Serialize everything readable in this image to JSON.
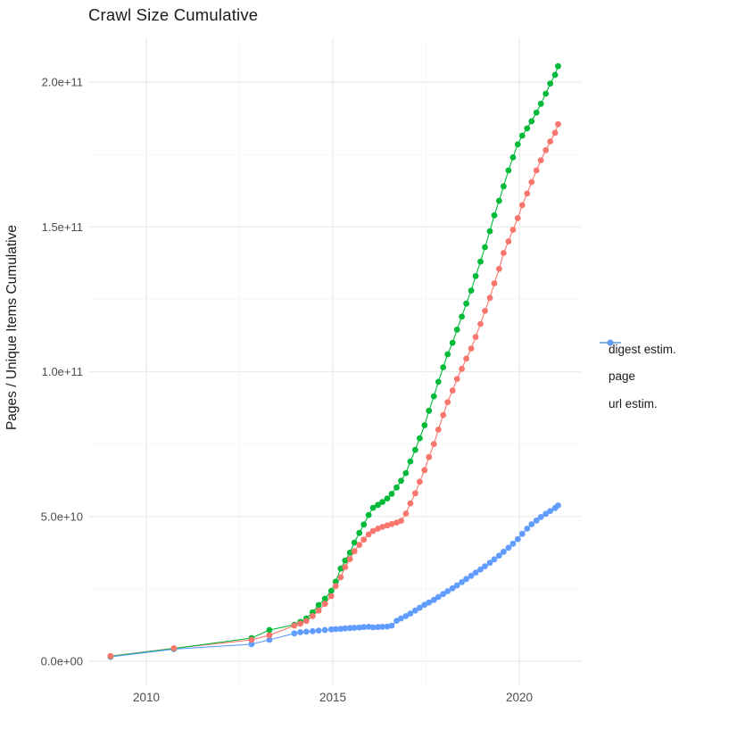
{
  "chart_data": {
    "type": "scatter",
    "title": "Crawl Size Cumulative",
    "xlabel": "",
    "ylabel": "Pages / Unique Items Cumulative",
    "legend_position": "right",
    "grid": "major and minor, light gray on white",
    "value_unit": "billions (1e9) of pages / unique items",
    "xlim": [
      2008.47,
      2021.65
    ],
    "ylim": [
      -8300000000,
      215000000000
    ],
    "x_ticks": {
      "values": [
        2010,
        2015,
        2020
      ],
      "labels": [
        "2010",
        "2015",
        "2020"
      ]
    },
    "x_minor_ticks": [
      2012.5,
      2017.5
    ],
    "y_ticks": {
      "values_e9": [
        0,
        50,
        100,
        150,
        200
      ],
      "labels": [
        "0.0e+00",
        "5.0e+10",
        "1.0e+11",
        "1.5e+11",
        "2.0e+11"
      ]
    },
    "y_minor_ticks_e9": [
      25,
      75,
      125,
      175
    ],
    "colors": {
      "digest": "#F8766D",
      "page": "#00BA38",
      "url": "#619CFF",
      "grid_major": "#EBEBEB",
      "grid_minor": "#F5F5F5",
      "axis_text": "#4D4D4D",
      "title_text": "#1A1A1A"
    },
    "series": [
      {
        "name": "digest estim.",
        "color": "#F8766D",
        "points_year_e9": [
          [
            2009.04,
            1.8
          ],
          [
            2010.74,
            4.5
          ],
          [
            2012.82,
            7.4
          ],
          [
            2013.3,
            9.0
          ],
          [
            2013.97,
            12.3
          ],
          [
            2014.13,
            13.0
          ],
          [
            2014.29,
            13.9
          ],
          [
            2014.46,
            15.6
          ],
          [
            2014.62,
            17.5
          ],
          [
            2014.79,
            19.8
          ],
          [
            2014.96,
            22.5
          ],
          [
            2015.08,
            26.0
          ],
          [
            2015.21,
            29.0
          ],
          [
            2015.33,
            32.5
          ],
          [
            2015.46,
            35.3
          ],
          [
            2015.58,
            38.0
          ],
          [
            2015.71,
            40.2
          ],
          [
            2015.83,
            42.0
          ],
          [
            2015.96,
            43.8
          ],
          [
            2016.08,
            45.0
          ],
          [
            2016.21,
            45.8
          ],
          [
            2016.33,
            46.4
          ],
          [
            2016.46,
            46.9
          ],
          [
            2016.58,
            47.4
          ],
          [
            2016.71,
            47.9
          ],
          [
            2016.83,
            48.5
          ],
          [
            2016.96,
            51.0
          ],
          [
            2017.08,
            54.5
          ],
          [
            2017.21,
            58.0
          ],
          [
            2017.33,
            62.0
          ],
          [
            2017.46,
            66.0
          ],
          [
            2017.58,
            70.5
          ],
          [
            2017.71,
            75.0
          ],
          [
            2017.83,
            80.0
          ],
          [
            2017.96,
            85.0
          ],
          [
            2018.08,
            89.5
          ],
          [
            2018.21,
            93.5
          ],
          [
            2018.33,
            97.5
          ],
          [
            2018.46,
            101.0
          ],
          [
            2018.58,
            104.5
          ],
          [
            2018.71,
            108.0
          ],
          [
            2018.83,
            112.0
          ],
          [
            2018.96,
            116.5
          ],
          [
            2019.08,
            121.0
          ],
          [
            2019.21,
            125.5
          ],
          [
            2019.33,
            130.5
          ],
          [
            2019.46,
            135.5
          ],
          [
            2019.58,
            141.0
          ],
          [
            2019.71,
            145.0
          ],
          [
            2019.83,
            149.0
          ],
          [
            2019.96,
            153.0
          ],
          [
            2020.08,
            157.5
          ],
          [
            2020.21,
            161.5
          ],
          [
            2020.33,
            165.5
          ],
          [
            2020.46,
            169.5
          ],
          [
            2020.58,
            173.0
          ],
          [
            2020.71,
            176.5
          ],
          [
            2020.83,
            179.5
          ],
          [
            2020.96,
            182.5
          ],
          [
            2021.04,
            185.5
          ]
        ]
      },
      {
        "name": "page",
        "color": "#00BA38",
        "points_year_e9": [
          [
            2009.04,
            1.7
          ],
          [
            2010.74,
            4.4
          ],
          [
            2012.82,
            8.0
          ],
          [
            2013.3,
            10.8
          ],
          [
            2013.97,
            12.6
          ],
          [
            2014.13,
            13.6
          ],
          [
            2014.29,
            14.8
          ],
          [
            2014.46,
            16.9
          ],
          [
            2014.62,
            19.4
          ],
          [
            2014.79,
            21.6
          ],
          [
            2014.96,
            24.3
          ],
          [
            2015.08,
            27.5
          ],
          [
            2015.21,
            32.0
          ],
          [
            2015.33,
            34.8
          ],
          [
            2015.46,
            37.5
          ],
          [
            2015.58,
            41.0
          ],
          [
            2015.71,
            44.3
          ],
          [
            2015.83,
            47.2
          ],
          [
            2015.96,
            50.5
          ],
          [
            2016.08,
            53.0
          ],
          [
            2016.21,
            54.0
          ],
          [
            2016.33,
            55.0
          ],
          [
            2016.46,
            56.2
          ],
          [
            2016.58,
            57.8
          ],
          [
            2016.71,
            60.0
          ],
          [
            2016.83,
            62.3
          ],
          [
            2016.96,
            65.0
          ],
          [
            2017.08,
            69.0
          ],
          [
            2017.21,
            73.0
          ],
          [
            2017.33,
            77.0
          ],
          [
            2017.46,
            81.5
          ],
          [
            2017.58,
            86.5
          ],
          [
            2017.71,
            91.5
          ],
          [
            2017.83,
            96.5
          ],
          [
            2017.96,
            101.5
          ],
          [
            2018.08,
            106.0
          ],
          [
            2018.21,
            110.0
          ],
          [
            2018.33,
            114.5
          ],
          [
            2018.46,
            119.0
          ],
          [
            2018.58,
            123.5
          ],
          [
            2018.71,
            128.0
          ],
          [
            2018.83,
            133.0
          ],
          [
            2018.96,
            138.0
          ],
          [
            2019.08,
            143.0
          ],
          [
            2019.21,
            148.5
          ],
          [
            2019.33,
            154.0
          ],
          [
            2019.46,
            159.0
          ],
          [
            2019.58,
            164.0
          ],
          [
            2019.71,
            169.5
          ],
          [
            2019.83,
            174.0
          ],
          [
            2019.96,
            178.5
          ],
          [
            2020.08,
            181.5
          ],
          [
            2020.21,
            184.0
          ],
          [
            2020.33,
            186.5
          ],
          [
            2020.46,
            189.5
          ],
          [
            2020.58,
            192.5
          ],
          [
            2020.71,
            196.0
          ],
          [
            2020.83,
            199.5
          ],
          [
            2020.96,
            202.5
          ],
          [
            2021.04,
            205.5
          ]
        ]
      },
      {
        "name": "url estim.",
        "color": "#619CFF",
        "points_year_e9": [
          [
            2009.04,
            1.5
          ],
          [
            2010.74,
            4.2
          ],
          [
            2012.82,
            5.9
          ],
          [
            2013.3,
            7.4
          ],
          [
            2013.97,
            9.6
          ],
          [
            2014.13,
            10.0
          ],
          [
            2014.29,
            10.2
          ],
          [
            2014.46,
            10.4
          ],
          [
            2014.62,
            10.6
          ],
          [
            2014.79,
            10.8
          ],
          [
            2014.96,
            11.0
          ],
          [
            2015.08,
            11.1
          ],
          [
            2015.21,
            11.2
          ],
          [
            2015.33,
            11.35
          ],
          [
            2015.46,
            11.45
          ],
          [
            2015.58,
            11.55
          ],
          [
            2015.71,
            11.65
          ],
          [
            2015.83,
            11.8
          ],
          [
            2015.96,
            11.9
          ],
          [
            2016.08,
            11.7
          ],
          [
            2016.21,
            11.8
          ],
          [
            2016.33,
            11.9
          ],
          [
            2016.46,
            12.0
          ],
          [
            2016.58,
            12.3
          ],
          [
            2016.71,
            14.0
          ],
          [
            2016.83,
            14.8
          ],
          [
            2016.96,
            15.6
          ],
          [
            2017.08,
            16.5
          ],
          [
            2017.21,
            17.5
          ],
          [
            2017.33,
            18.5
          ],
          [
            2017.46,
            19.5
          ],
          [
            2017.58,
            20.3
          ],
          [
            2017.71,
            21.2
          ],
          [
            2017.83,
            22.2
          ],
          [
            2017.96,
            23.2
          ],
          [
            2018.08,
            24.2
          ],
          [
            2018.21,
            25.2
          ],
          [
            2018.33,
            26.2
          ],
          [
            2018.46,
            27.3
          ],
          [
            2018.58,
            28.4
          ],
          [
            2018.71,
            29.5
          ],
          [
            2018.83,
            30.6
          ],
          [
            2018.96,
            31.7
          ],
          [
            2019.08,
            32.8
          ],
          [
            2019.21,
            34.0
          ],
          [
            2019.33,
            35.2
          ],
          [
            2019.46,
            36.5
          ],
          [
            2019.58,
            37.8
          ],
          [
            2019.71,
            39.2
          ],
          [
            2019.83,
            40.6
          ],
          [
            2019.96,
            42.2
          ],
          [
            2020.08,
            44.0
          ],
          [
            2020.21,
            45.8
          ],
          [
            2020.33,
            47.3
          ],
          [
            2020.46,
            48.6
          ],
          [
            2020.58,
            49.8
          ],
          [
            2020.71,
            50.9
          ],
          [
            2020.83,
            51.9
          ],
          [
            2020.96,
            52.9
          ],
          [
            2021.04,
            53.8
          ]
        ]
      }
    ]
  }
}
